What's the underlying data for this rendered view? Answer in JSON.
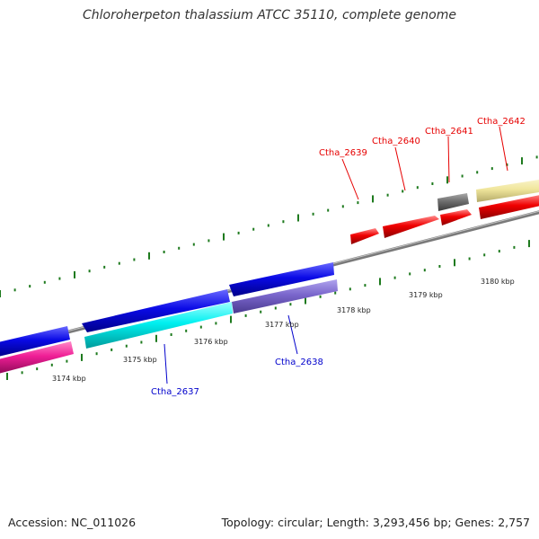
{
  "title": "Chloroherpeton thalassium ATCC 35110, complete genome",
  "footer": {
    "accession": "Accession: NC_011026",
    "topology": "Topology: circular; Length: 3,293,456 bp; Genes: 2,757"
  },
  "colors": {
    "backbone": "#8a8a8a",
    "tick": "#1e7a1e",
    "blue": "#0a0ae6",
    "cyan": "#00f0f0",
    "purple": "#7a66cc",
    "pink": "#f01e96",
    "red": "#f00000",
    "gray": "#6e6e6e",
    "khaki": "#f0e69c",
    "label_red": "#e60000",
    "label_blue": "#0000cc"
  },
  "kbp_labels": [
    "3174 kbp",
    "3175 kbp",
    "3176 kbp",
    "3177 kbp",
    "3178 kbp",
    "3179 kbp",
    "3180 kbp"
  ],
  "gene_labels": [
    "Ctha_2637",
    "Ctha_2638",
    "Ctha_2639",
    "Ctha_2640",
    "Ctha_2641",
    "Ctha_2642"
  ]
}
